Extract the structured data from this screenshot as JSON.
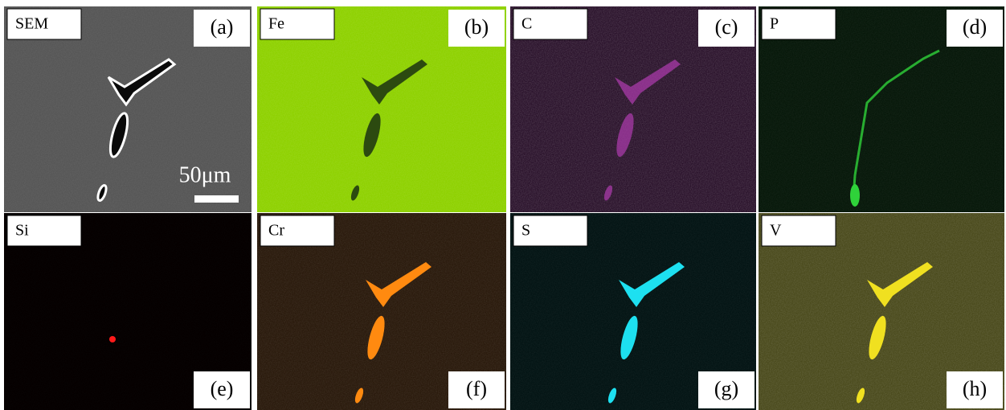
{
  "panels": [
    {
      "element": "SEM",
      "letter": "(a)"
    },
    {
      "element": "Fe",
      "letter": "(b)"
    },
    {
      "element": "C",
      "letter": "(c)"
    },
    {
      "element": "P",
      "letter": "(d)"
    },
    {
      "element": "Si",
      "letter": "(e)"
    },
    {
      "element": "Cr",
      "letter": "(f)"
    },
    {
      "element": "S",
      "letter": "(g)"
    },
    {
      "element": "V",
      "letter": "(h)"
    }
  ],
  "scale_bar": "50μm"
}
